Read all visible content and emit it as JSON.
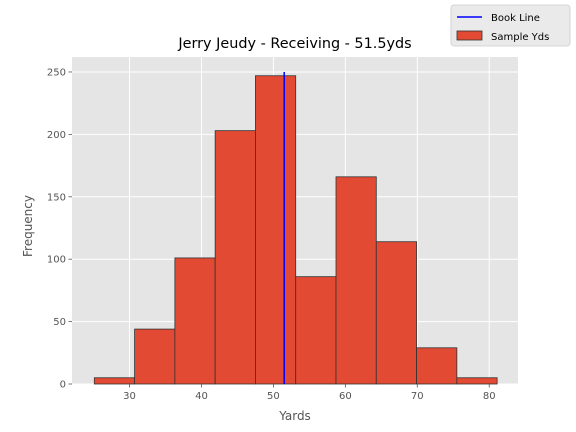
{
  "chart_data": {
    "type": "bar",
    "title": "Jerry Jeudy - Receiving - 51.5yds",
    "xlabel": "Yards",
    "ylabel": "Frequency",
    "xlim": [
      22,
      84
    ],
    "ylim": [
      0,
      262
    ],
    "xticks": [
      30,
      40,
      50,
      60,
      70,
      80
    ],
    "yticks": [
      0,
      50,
      100,
      150,
      200,
      250
    ],
    "bins": [
      {
        "start": 25.1,
        "end": 30.7,
        "value": 5
      },
      {
        "start": 30.7,
        "end": 36.3,
        "value": 44
      },
      {
        "start": 36.3,
        "end": 41.9,
        "value": 101
      },
      {
        "start": 41.9,
        "end": 47.5,
        "value": 203
      },
      {
        "start": 47.5,
        "end": 53.1,
        "value": 247
      },
      {
        "start": 53.1,
        "end": 58.7,
        "value": 86
      },
      {
        "start": 58.7,
        "end": 64.3,
        "value": 166
      },
      {
        "start": 64.3,
        "end": 69.9,
        "value": 114
      },
      {
        "start": 69.9,
        "end": 75.5,
        "value": 29
      },
      {
        "start": 75.5,
        "end": 81.1,
        "value": 5
      }
    ],
    "series": [
      {
        "name": "Sample Yds",
        "color": "#E24A33"
      },
      {
        "name": "Book Line",
        "color": "#0000FF",
        "x": 51.5,
        "y_range": [
          0,
          250
        ]
      }
    ],
    "legend": {
      "placement": "top-right",
      "entries": [
        "Book Line",
        "Sample Yds"
      ]
    },
    "grid": true,
    "background": "#E5E5E5",
    "grid_color": "#FFFFFF"
  }
}
